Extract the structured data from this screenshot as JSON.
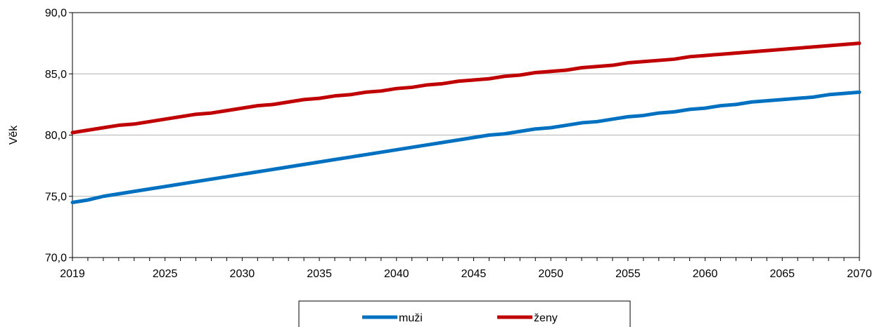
{
  "chart_data": {
    "type": "line",
    "title": "",
    "xlabel": "",
    "ylabel": "Věk",
    "xlim": [
      2019,
      2070
    ],
    "ylim": [
      70,
      90
    ],
    "x_ticks": [
      "2019",
      "2025",
      "2030",
      "2035",
      "2040",
      "2045",
      "2050",
      "2055",
      "2060",
      "2065",
      "2070"
    ],
    "y_ticks": [
      "70,0",
      "75,0",
      "80,0",
      "85,0",
      "90,0"
    ],
    "grid": true,
    "legend_position": "bottom",
    "x": [
      2019,
      2020,
      2021,
      2022,
      2023,
      2024,
      2025,
      2026,
      2027,
      2028,
      2029,
      2030,
      2031,
      2032,
      2033,
      2034,
      2035,
      2036,
      2037,
      2038,
      2039,
      2040,
      2041,
      2042,
      2043,
      2044,
      2045,
      2046,
      2047,
      2048,
      2049,
      2050,
      2051,
      2052,
      2053,
      2054,
      2055,
      2056,
      2057,
      2058,
      2059,
      2060,
      2061,
      2062,
      2063,
      2064,
      2065,
      2066,
      2067,
      2068,
      2069,
      2070
    ],
    "series": [
      {
        "name": "muži",
        "color": "#0070C0",
        "values": [
          74.5,
          74.7,
          75.0,
          75.2,
          75.4,
          75.6,
          75.8,
          76.0,
          76.2,
          76.4,
          76.6,
          76.8,
          77.0,
          77.2,
          77.4,
          77.6,
          77.8,
          78.0,
          78.2,
          78.4,
          78.6,
          78.8,
          79.0,
          79.2,
          79.4,
          79.6,
          79.8,
          80.0,
          80.1,
          80.3,
          80.5,
          80.6,
          80.8,
          81.0,
          81.1,
          81.3,
          81.5,
          81.6,
          81.8,
          81.9,
          82.1,
          82.2,
          82.4,
          82.5,
          82.7,
          82.8,
          82.9,
          83.0,
          83.1,
          83.3,
          83.4,
          83.5
        ]
      },
      {
        "name": "ženy",
        "color": "#C00000",
        "values": [
          80.2,
          80.4,
          80.6,
          80.8,
          80.9,
          81.1,
          81.3,
          81.5,
          81.7,
          81.8,
          82.0,
          82.2,
          82.4,
          82.5,
          82.7,
          82.9,
          83.0,
          83.2,
          83.3,
          83.5,
          83.6,
          83.8,
          83.9,
          84.1,
          84.2,
          84.4,
          84.5,
          84.6,
          84.8,
          84.9,
          85.1,
          85.2,
          85.3,
          85.5,
          85.6,
          85.7,
          85.9,
          86.0,
          86.1,
          86.2,
          86.4,
          86.5,
          86.6,
          86.7,
          86.8,
          86.9,
          87.0,
          87.1,
          87.2,
          87.3,
          87.4,
          87.5
        ]
      }
    ]
  }
}
